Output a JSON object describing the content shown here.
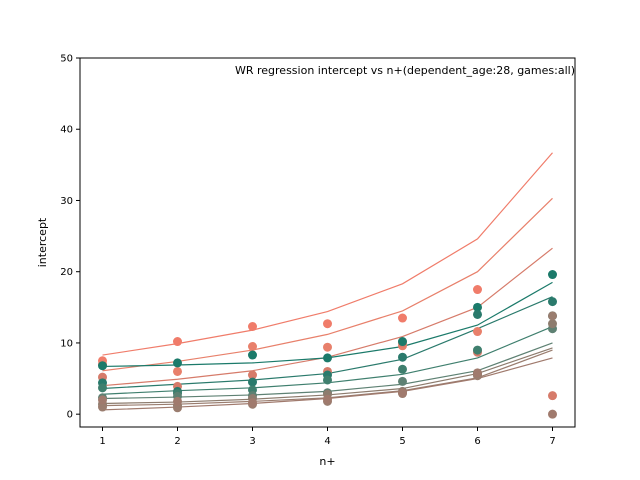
{
  "chart_data": {
    "type": "scatter",
    "title": "WR regression intercept vs n+(dependent_age:28, games:all)",
    "xlabel": "n+",
    "ylabel": "intercept",
    "xlim": [
      0.7,
      7.3
    ],
    "ylim": [
      -1.8,
      50
    ],
    "xticks": [
      1,
      2,
      3,
      4,
      5,
      6,
      7
    ],
    "yticks": [
      0,
      10,
      20,
      30,
      40,
      50
    ],
    "grid": false,
    "x": [
      1,
      2,
      3,
      4,
      5,
      6,
      7
    ],
    "series": [
      {
        "color": "#f07c6a",
        "points": [
          7.5,
          10.2,
          12.3,
          12.7,
          13.5,
          17.5,
          null
        ],
        "fit": [
          8.3,
          9.9,
          11.8,
          14.4,
          18.3,
          24.6,
          36.7
        ]
      },
      {
        "color": "#e8806b",
        "points": [
          7.0,
          6.0,
          9.5,
          9.4,
          9.6,
          11.6,
          null
        ],
        "fit": [
          6.1,
          7.4,
          9.0,
          11.2,
          14.5,
          20.0,
          30.3
        ]
      },
      {
        "color": "#d67b6a",
        "points": [
          5.2,
          3.9,
          5.5,
          6.0,
          10.0,
          8.7,
          2.6
        ],
        "fit": [
          4.0,
          4.9,
          6.1,
          8.0,
          10.9,
          15.0,
          23.3
        ]
      },
      {
        "color": "#1b7a6a",
        "points": [
          6.8,
          7.2,
          8.3,
          7.9,
          10.2,
          15.0,
          19.6
        ],
        "fit": [
          6.7,
          6.9,
          7.2,
          7.9,
          9.5,
          12.5,
          18.5
        ]
      },
      {
        "color": "#2a7a6c",
        "points": [
          4.4,
          3.2,
          4.5,
          5.5,
          8.0,
          14.0,
          15.8
        ],
        "fit": [
          3.6,
          4.2,
          4.8,
          5.7,
          7.7,
          12.0,
          16.5
        ]
      },
      {
        "color": "#3f7f6e",
        "points": [
          3.7,
          2.9,
          3.4,
          4.8,
          6.3,
          9.0,
          13.8
        ],
        "fit": [
          2.8,
          3.3,
          3.7,
          4.4,
          5.6,
          7.9,
          12.3
        ]
      },
      {
        "color": "#5e8173",
        "points": [
          2.3,
          2.5,
          2.6,
          3.0,
          4.6,
          5.7,
          12.0
        ],
        "fit": [
          2.2,
          2.4,
          2.7,
          3.2,
          4.2,
          6.1,
          10.0
        ]
      },
      {
        "color": "#8d7c6e",
        "points": [
          1.4,
          1.2,
          2.2,
          2.8,
          3.2,
          5.5,
          12.7
        ],
        "fit": [
          1.5,
          1.7,
          2.1,
          2.7,
          3.6,
          5.7,
          9.3
        ]
      },
      {
        "color": "#9a7d6f",
        "points": [
          1.0,
          0.9,
          1.4,
          1.8,
          2.9,
          5.4,
          13.8
        ],
        "fit": [
          1.2,
          1.4,
          1.8,
          2.3,
          3.3,
          5.1,
          9.0
        ]
      },
      {
        "color": "#a07a6d",
        "points": [
          2.0,
          1.8,
          1.6,
          2.1,
          3.0,
          5.8,
          0.0
        ],
        "fit": [
          0.6,
          1.0,
          1.5,
          2.2,
          3.2,
          5.0,
          7.9
        ]
      }
    ]
  }
}
